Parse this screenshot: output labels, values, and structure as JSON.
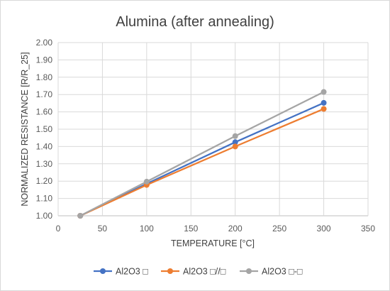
{
  "chart_data": {
    "type": "line",
    "title": "Alumina (after annealing)",
    "xlabel": "TEMPERATURE [°C]",
    "ylabel": "NORMALIZED RESISTANCE [R/R_25]",
    "xlim": [
      0,
      350
    ],
    "ylim": [
      1.0,
      2.0
    ],
    "xticks": [
      0,
      50,
      100,
      150,
      200,
      250,
      300,
      350
    ],
    "xtick_labels": [
      "0",
      "50",
      "100",
      "150",
      "200",
      "250",
      "300",
      "350"
    ],
    "yticks": [
      1.0,
      1.1,
      1.2,
      1.3,
      1.4,
      1.5,
      1.6,
      1.7,
      1.8,
      1.9,
      2.0
    ],
    "ytick_labels": [
      "1.00",
      "1.10",
      "1.20",
      "1.30",
      "1.40",
      "1.50",
      "1.60",
      "1.70",
      "1.80",
      "1.90",
      "2.00"
    ],
    "grid": true,
    "legend_position": "bottom",
    "x": [
      25,
      100,
      200,
      300
    ],
    "series": [
      {
        "name": "Al2O3 □",
        "color": "#4472c4",
        "values": [
          1.0,
          1.185,
          1.425,
          1.652
        ]
      },
      {
        "name": "Al2O3 □//□",
        "color": "#ed7d31",
        "values": [
          1.0,
          1.178,
          1.4,
          1.617
        ]
      },
      {
        "name": "Al2O3 □-□",
        "color": "#a5a5a5",
        "values": [
          1.0,
          1.197,
          1.46,
          1.715
        ]
      }
    ]
  }
}
